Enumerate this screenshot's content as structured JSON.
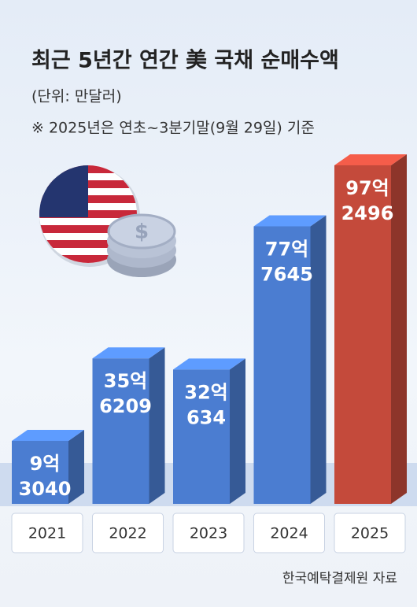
{
  "chart_data": {
    "type": "bar",
    "title": "최근 5년간 연간 美 국채 순매수액",
    "subtitle": "(단위: 만달러)",
    "note": "※ 2025년은 연초~3분기말(9월 29일) 기준",
    "source": "한국예탁결제원 자료",
    "categories": [
      "2021",
      "2022",
      "2023",
      "2024",
      "2025"
    ],
    "values": [
      93040,
      356209,
      320634,
      777645,
      972496
    ],
    "value_labels": [
      [
        "9억",
        "3040"
      ],
      [
        "35억",
        "6209"
      ],
      [
        "32억",
        "634"
      ],
      [
        "77억",
        "7645"
      ],
      [
        "97억",
        "2496"
      ]
    ],
    "colors": [
      "#4b7dd1",
      "#4b7dd1",
      "#4b7dd1",
      "#4b7dd1",
      "#c44a3b"
    ]
  }
}
